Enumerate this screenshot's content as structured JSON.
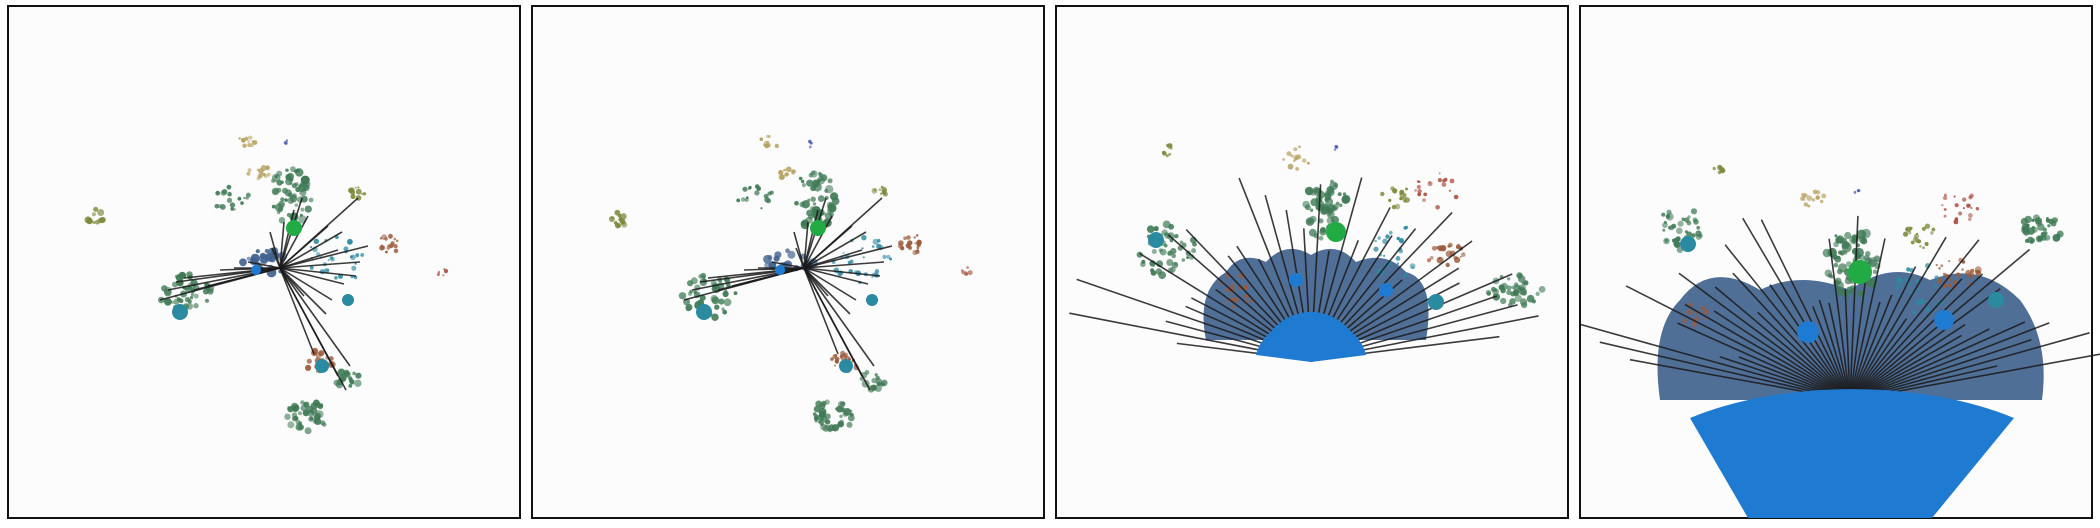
{
  "figure": {
    "panel_count": 4,
    "panels": [
      {
        "id": "panel-1",
        "view": "radial"
      },
      {
        "id": "panel-2",
        "view": "radial"
      },
      {
        "id": "panel-3",
        "view": "fan"
      },
      {
        "id": "panel-4",
        "view": "fan-zoomed"
      }
    ]
  },
  "palette": {
    "background": "#fdfcfd",
    "frame": "#111111",
    "edge": "#1a1a1a",
    "hub": "#1e7bd1",
    "hub_shadow": "#3d5f8c",
    "cluster_dark_green": "#3f7a55",
    "cluster_olive": "#7a8a3a",
    "cluster_khaki": "#b3a05a",
    "cluster_brown": "#9a5a3a",
    "cluster_teal": "#2a8aa0",
    "cluster_blue_dots": "#4455aa",
    "cluster_red": "#a84a3a",
    "bright_green": "#22aa44"
  }
}
